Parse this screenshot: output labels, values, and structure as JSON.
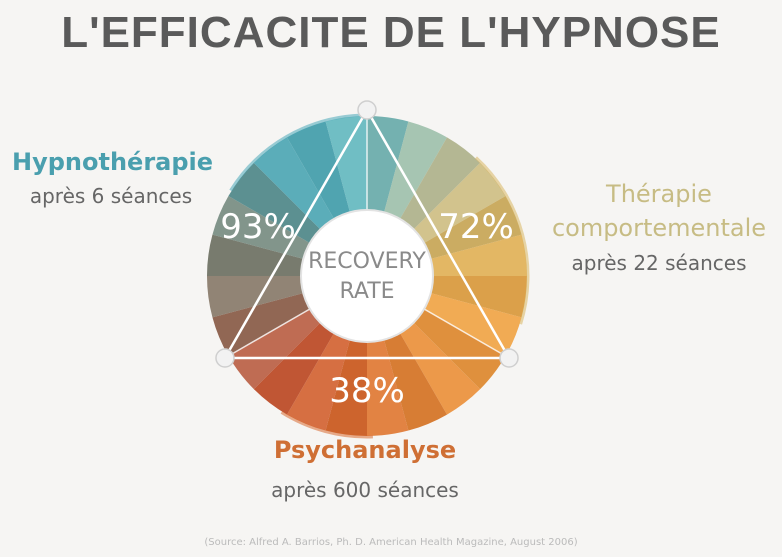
{
  "chart_data": {
    "type": "pie",
    "title": "L'EFFICACITE DE L'HYPNOSE",
    "center_label": [
      "RECOVERY",
      "RATE"
    ],
    "series": [
      {
        "name": "Hypnothérapie",
        "sessions": "après 6 séances",
        "value": 93,
        "label": "93%",
        "color": "#4aa8b8"
      },
      {
        "name": "Thérapie comportementale",
        "name_lines": [
          "Thérapie",
          "comportementale"
        ],
        "sessions": "après 22 séances",
        "value": 72,
        "label": "72%",
        "color": "#d9b763"
      },
      {
        "name": "Psychanalyse",
        "sessions": "après 600 séances",
        "value": 38,
        "label": "38%",
        "color": "#d9692f"
      }
    ],
    "source": "(Source: Alfred A. Barrios, Ph. D. American Health Magazine, August 2006)"
  }
}
